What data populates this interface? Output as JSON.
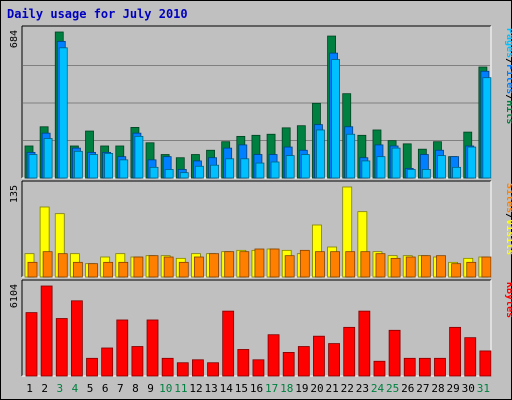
{
  "chart_data": {
    "type": "bar",
    "title": "Daily usage for July 2010",
    "categories": [
      "1",
      "2",
      "3",
      "4",
      "5",
      "6",
      "7",
      "8",
      "9",
      "10",
      "11",
      "12",
      "13",
      "14",
      "15",
      "16",
      "17",
      "18",
      "19",
      "20",
      "21",
      "22",
      "23",
      "24",
      "25",
      "26",
      "27",
      "28",
      "29",
      "30",
      "31"
    ],
    "weekend_days": [
      "3",
      "4",
      "10",
      "11",
      "17",
      "18",
      "24",
      "25",
      "31"
    ],
    "panels": [
      {
        "name": "hits-files-pages",
        "ymax_label": "684",
        "ymax": 684,
        "right_label": [
          "Pages",
          "/",
          "Files",
          "/",
          "Hits"
        ],
        "right_label_colors": [
          "#00c0ff",
          "#000000",
          "#0080ff",
          "#000000",
          "#008040"
        ],
        "series": [
          {
            "name": "Hits",
            "color": "#008040",
            "values": [
              150,
              240,
              684,
              150,
              220,
              150,
              150,
              237,
              165,
              110,
              95,
              110,
              130,
              170,
              195,
              200,
              205,
              235,
              245,
              350,
              665,
              395,
              200,
              225,
              175,
              160,
              135,
              170,
              100,
              215,
              520
            ]
          },
          {
            "name": "Files",
            "color": "#0080ff",
            "values": [
              120,
              210,
              640,
              140,
              120,
              120,
              100,
              210,
              85,
              100,
              40,
              80,
              95,
              140,
              155,
              110,
              110,
              145,
              130,
              250,
              585,
              240,
              95,
              155,
              150,
              45,
              110,
              130,
              100,
              150,
              500
            ]
          },
          {
            "name": "Pages",
            "color": "#00c0ff",
            "values": [
              110,
              185,
              610,
              125,
              110,
              115,
              85,
              195,
              50,
              40,
              25,
              55,
              60,
              90,
              90,
              70,
              75,
              105,
              110,
              225,
              555,
              205,
              80,
              100,
              140,
              40,
              40,
              105,
              50,
              145,
              470
            ]
          }
        ]
      },
      {
        "name": "visits-sites",
        "ymax_label": "135",
        "ymax": 135,
        "right_label": [
          "Sites",
          "/",
          "Visits"
        ],
        "right_label_colors": [
          "#ff8000",
          "#000000",
          "#ffff00"
        ],
        "series": [
          {
            "name": "Visits",
            "color": "#ffff00",
            "values": [
              35,
              105,
              95,
              35,
              20,
              30,
              35,
              30,
              32,
              32,
              28,
              35,
              35,
              38,
              40,
              40,
              42,
              40,
              35,
              78,
              45,
              135,
              98,
              38,
              32,
              32,
              32,
              30,
              22,
              28,
              30
            ]
          },
          {
            "name": "Sites",
            "color": "#ff8000",
            "values": [
              22,
              38,
              35,
              22,
              20,
              22,
              22,
              30,
              32,
              30,
              22,
              30,
              35,
              38,
              38,
              42,
              42,
              32,
              40,
              38,
              38,
              38,
              38,
              35,
              28,
              30,
              32,
              32,
              20,
              22,
              30
            ]
          }
        ]
      },
      {
        "name": "kbytes",
        "ymax_label": "6104",
        "ymax": 6104,
        "right_label": [
          "KBytes"
        ],
        "right_label_colors": [
          "#ff0000"
        ],
        "series": [
          {
            "name": "KBytes",
            "color": "#ff0000",
            "values": [
              4300,
              6104,
              3900,
              5100,
              1200,
              1900,
              3800,
              2000,
              3800,
              1200,
              900,
              1100,
              900,
              4400,
              1800,
              1100,
              2800,
              1600,
              2000,
              2700,
              2200,
              3300,
              4400,
              1000,
              3100,
              1200,
              1200,
              1200,
              3300,
              2600,
              1700
            ]
          }
        ]
      }
    ]
  }
}
